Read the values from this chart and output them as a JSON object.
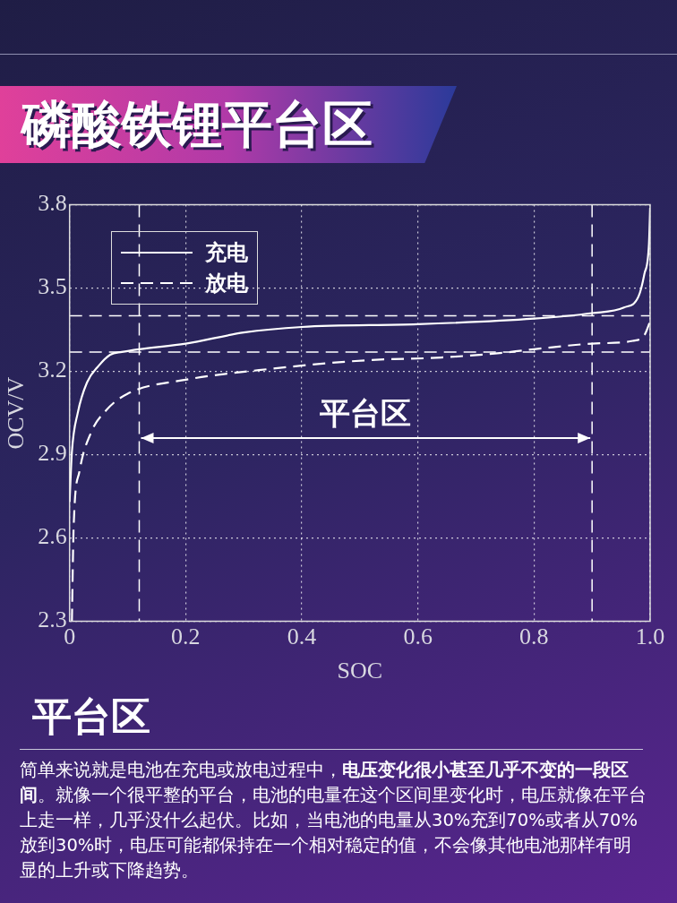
{
  "chart_data": {
    "type": "line",
    "title": "磷酸铁锂平台区",
    "xlabel": "SOC",
    "ylabel": "OCV/V",
    "xlim": [
      0,
      1
    ],
    "xticks": [
      0,
      0.2,
      0.4,
      0.6,
      0.8,
      {
        "value": 1,
        "label": "1.0"
      }
    ],
    "ylim": [
      2.3,
      3.8
    ],
    "yticks": [
      2.3,
      2.6,
      2.9,
      3.2,
      3.5,
      3.8
    ],
    "grid": true,
    "legend": "top left",
    "marker": "none",
    "series": [
      {
        "name": "充电",
        "color": "#ffffff",
        "line_style": "solid",
        "x": [
          0,
          0.004,
          0.014,
          0.03,
          0.05,
          0.07,
          0.09,
          0.12,
          0.2,
          0.3,
          0.4,
          0.6,
          0.8,
          0.9,
          0.955,
          0.98,
          0.99,
          0.998,
          1
        ],
        "values": [
          2.73,
          2.91,
          3.05,
          3.16,
          3.22,
          3.26,
          3.27,
          3.28,
          3.3,
          3.34,
          3.36,
          3.37,
          3.39,
          3.41,
          3.43,
          3.47,
          3.55,
          3.66,
          3.79
        ]
      },
      {
        "name": "放电",
        "color": "#ffffff",
        "line_style": "dashed",
        "x": [
          0.004,
          0.007,
          0.017,
          0.037,
          0.063,
          0.1,
          0.2,
          0.35,
          0.51,
          0.64,
          0.76,
          0.8,
          0.9,
          0.97,
          0.99,
          1
        ],
        "values": [
          2.3,
          2.64,
          2.84,
          2.98,
          3.06,
          3.12,
          3.17,
          3.21,
          3.24,
          3.25,
          3.27,
          3.28,
          3.3,
          3.31,
          3.33,
          3.38
        ]
      }
    ],
    "ref_lines": [
      {
        "axis": "y",
        "value": 3.27,
        "color": "#ffffff",
        "line_style": "dashed"
      },
      {
        "axis": "y",
        "value": 3.4,
        "color": "#ffffff",
        "line_style": "dashed"
      },
      {
        "axis": "x",
        "value": 0.12,
        "color": "#ffffff",
        "line_style": "dashed"
      },
      {
        "axis": "x",
        "value": 0.9,
        "color": "#ffffff",
        "line_style": "dashed"
      }
    ],
    "annotations": [
      "平台区",
      "平台区",
      "简单来说就是电池在充电或放电过程中，",
      "电压变化很小甚至几乎不变的一段区间",
      "。就像一个很平整的平台，电池的电量在这个区间里变化时，电压就像在平台上走一样，几乎没什么起伏。比如，当电池的电量从30%充到70%或者从70%放到30%时，电压可能都保持在一个相对稳定的值，不会像其他电池那样有明显的上升或下降趋势。"
    ]
  }
}
